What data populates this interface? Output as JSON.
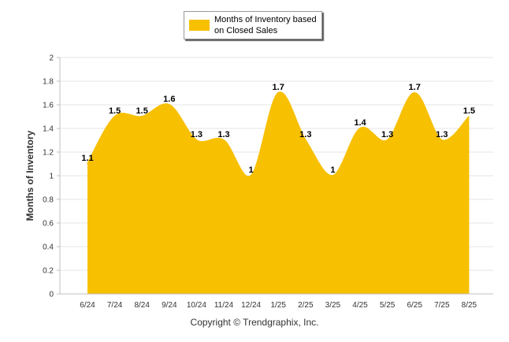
{
  "chart_data": {
    "type": "area",
    "categories": [
      "6/24",
      "7/24",
      "8/24",
      "9/24",
      "10/24",
      "11/24",
      "12/24",
      "1/25",
      "2/25",
      "3/25",
      "4/25",
      "5/25",
      "6/25",
      "7/25",
      "8/25"
    ],
    "series": [
      {
        "name": "Months of Inventory based on Closed Sales",
        "values": [
          1.1,
          1.5,
          1.5,
          1.6,
          1.3,
          1.3,
          1.0,
          1.7,
          1.3,
          1.0,
          1.4,
          1.3,
          1.7,
          1.3,
          1.5
        ],
        "labels": [
          "1.1",
          "1.5",
          "1.5",
          "1.6",
          "1.3",
          "1.3",
          "1",
          "1.7",
          "1.3",
          "1",
          "1.4",
          "1.3",
          "1.7",
          "1.3",
          "1.5"
        ],
        "color": "#F7C000"
      }
    ],
    "ylabel": "Months of Inventory",
    "xlabel": "",
    "ylim": [
      0,
      2
    ],
    "yticks": [
      "0",
      "0.2",
      "0.4",
      "0.6",
      "0.8",
      "1",
      "1.2",
      "1.4",
      "1.6",
      "1.8",
      "2"
    ],
    "grid": true,
    "legend_position": "top-center"
  },
  "legend": {
    "label": "Months of Inventory based on Closed Sales",
    "color": "#F7C000"
  },
  "footer": {
    "copyright": "Copyright © Trendgraphix, Inc."
  }
}
